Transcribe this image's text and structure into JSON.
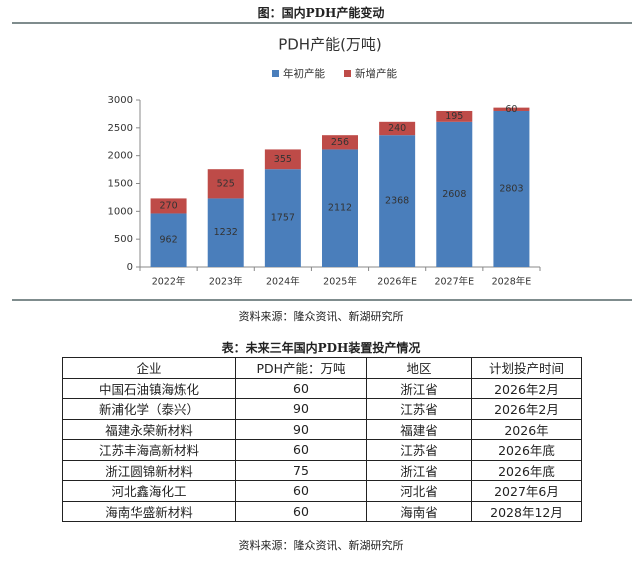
{
  "figure_caption": "图：国内PDH产能变动",
  "chart_data": {
    "type": "stacked_bar",
    "title": "PDH产能(万吨)",
    "categories": [
      "2022年",
      "2023年",
      "2024年",
      "2025年",
      "2026年E",
      "2027年E",
      "2028年E"
    ],
    "series": [
      {
        "name": "年初产能",
        "color": "#4a7ebb",
        "values": [
          962,
          1232,
          1757,
          2112,
          2368,
          2608,
          2803
        ]
      },
      {
        "name": "新增产能",
        "color": "#be4b48",
        "values": [
          270,
          525,
          355,
          256,
          240,
          195,
          60
        ]
      }
    ],
    "ylim": [
      0,
      3000
    ],
    "yticks": [
      0,
      500,
      1000,
      1500,
      2000,
      2500,
      3000
    ],
    "grid": false,
    "legend": "top"
  },
  "chart_source": "资料来源：隆众资讯、新湖研究所",
  "table_caption": "表：未来三年国内PDH装置投产情况",
  "table": {
    "header": [
      "企业",
      "PDH产能：万吨",
      "地区",
      "计划投产时间"
    ],
    "rows": [
      [
        "中国石油镇海炼化",
        "60",
        "浙江省",
        "2026年2月"
      ],
      [
        "新浦化学（泰兴）",
        "90",
        "江苏省",
        "2026年2月"
      ],
      [
        "福建永荣新材料",
        "90",
        "福建省",
        "2026年"
      ],
      [
        "江苏丰海高新材料",
        "60",
        "江苏省",
        "2026年底"
      ],
      [
        "浙江圆锦新材料",
        "75",
        "浙江省",
        "2026年底"
      ],
      [
        "河北鑫海化工",
        "60",
        "河北省",
        "2027年6月"
      ],
      [
        "海南华盛新材料",
        "60",
        "海南省",
        "2028年12月"
      ]
    ]
  },
  "table_source": "资料来源：隆众资讯、新湖研究所"
}
